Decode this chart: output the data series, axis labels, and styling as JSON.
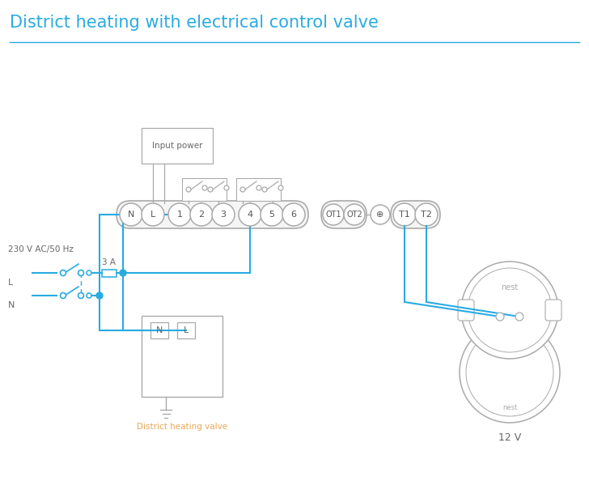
{
  "title": "District heating with electrical control valve",
  "title_color": "#29abe2",
  "title_fontsize": 15,
  "bg_color": "#ffffff",
  "wire_color": "#29abe2",
  "outline_color": "#aaaaaa",
  "text_color": "#666666",
  "valve_label_color": "#e8a857",
  "terminal_labels": [
    "N",
    "L",
    "1",
    "2",
    "3",
    "4",
    "5",
    "6"
  ],
  "ot_labels": [
    "OT1",
    "OT2"
  ],
  "t_labels": [
    "T1",
    "T2"
  ],
  "label_230": "230 V AC/50 Hz",
  "label_L": "L",
  "label_N": "N",
  "label_3A": "3 A",
  "label_valve": "District heating valve",
  "label_12v": "12 V",
  "label_input": "Input power",
  "label_nest": "nest"
}
